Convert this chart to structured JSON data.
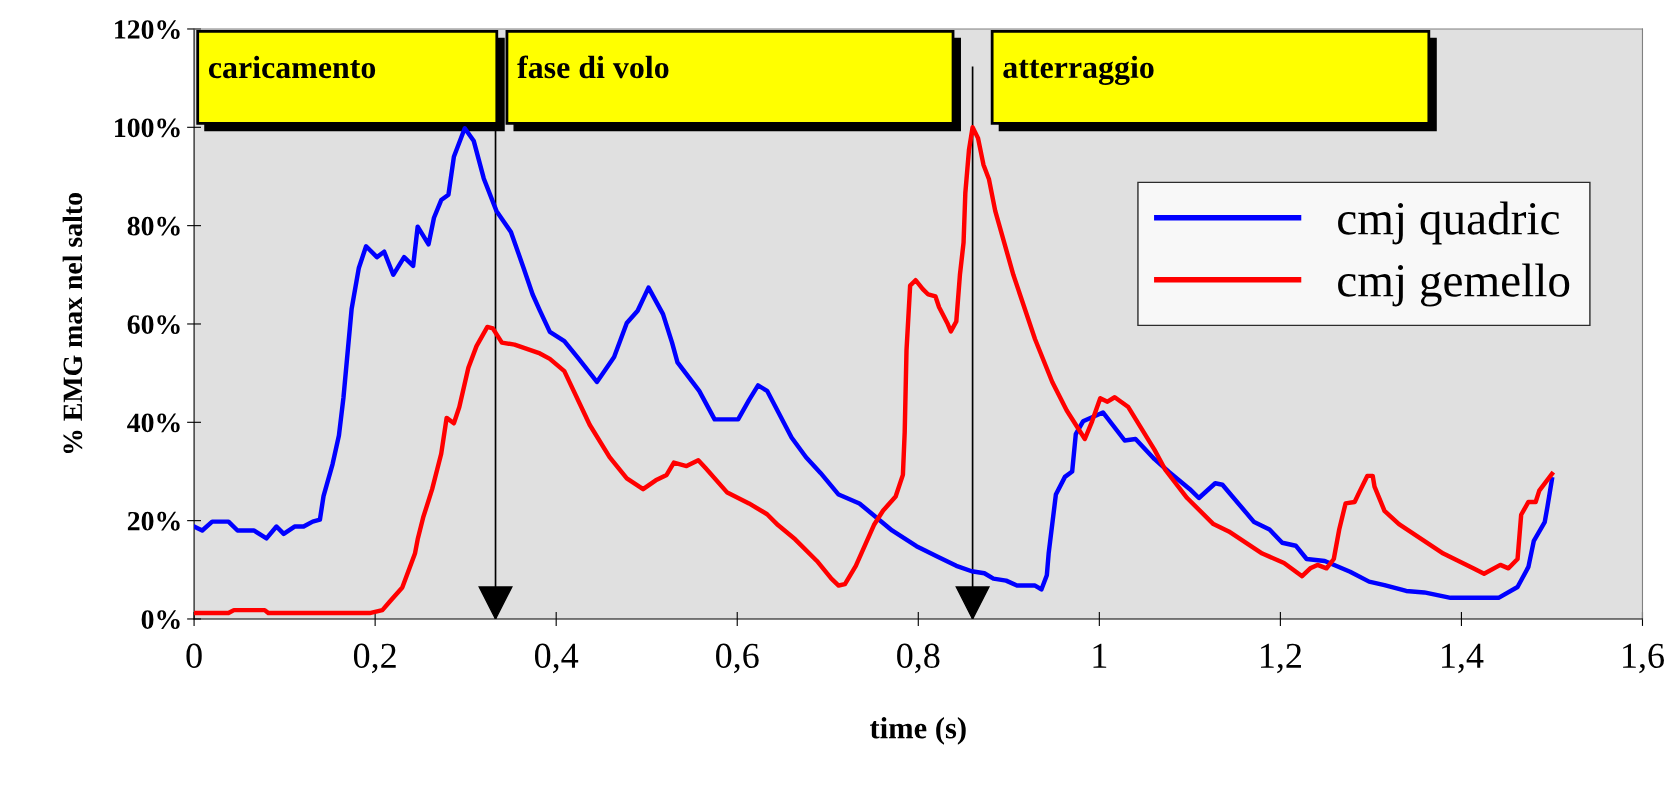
{
  "chart_data": {
    "type": "line",
    "xlabel": "time (s)",
    "ylabel": "% EMG max nel salto",
    "xlim": [
      0,
      1.6
    ],
    "ylim": [
      0,
      120
    ],
    "xticks": [
      0,
      {
        "value": 0.2,
        "label": "0,2"
      },
      {
        "value": 0.4,
        "label": "0,4"
      },
      {
        "value": 0.6,
        "label": "0,6"
      },
      {
        "value": 0.8,
        "label": "0,8"
      },
      1,
      {
        "value": 1.2,
        "label": "1,2"
      },
      {
        "value": 1.4,
        "label": "1,4"
      },
      {
        "value": 1.6,
        "label": "1,6"
      }
    ],
    "yticks": [
      {
        "value": 0,
        "label": "0%"
      },
      {
        "value": 20,
        "label": "20%"
      },
      {
        "value": 40,
        "label": "40%"
      },
      {
        "value": 60,
        "label": "60%"
      },
      {
        "value": 80,
        "label": "80%"
      },
      {
        "value": 100,
        "label": "100%"
      },
      {
        "value": 120,
        "label": "120%"
      }
    ],
    "grid": false,
    "legend": "top right",
    "line_style": "solid",
    "marker": "none",
    "series": [
      {
        "name": "cmj quadric",
        "color": "#0000ff",
        "x": [
          0,
          0.009,
          0.02,
          0.038,
          0.048,
          0.066,
          0.08,
          0.091,
          0.099,
          0.111,
          0.121,
          0.131,
          0.139,
          0.143,
          0.153,
          0.16,
          0.165,
          0.17,
          0.174,
          0.182,
          0.19,
          0.202,
          0.21,
          0.22,
          0.232,
          0.242,
          0.247,
          0.259,
          0.265,
          0.273,
          0.281,
          0.287,
          0.299,
          0.309,
          0.32,
          0.334,
          0.35,
          0.364,
          0.374,
          0.382,
          0.393,
          0.409,
          0.425,
          0.445,
          0.464,
          0.478,
          0.49,
          0.502,
          0.518,
          0.528,
          0.534,
          0.558,
          0.575,
          0.601,
          0.613,
          0.623,
          0.633,
          0.66,
          0.676,
          0.692,
          0.712,
          0.735,
          0.771,
          0.798,
          0.822,
          0.842,
          0.859,
          0.873,
          0.883,
          0.897,
          0.909,
          0.929,
          0.936,
          0.942,
          0.944,
          0.952,
          0.962,
          0.97,
          0.974,
          0.982,
          1.004,
          1.028,
          1.04,
          1.061,
          1.077,
          1.1,
          1.11,
          1.128,
          1.136,
          1.171,
          1.188,
          1.202,
          1.217,
          1.229,
          1.249,
          1.277,
          1.298,
          1.315,
          1.339,
          1.359,
          1.388,
          1.441,
          1.462,
          1.474,
          1.48,
          1.492,
          1.495,
          1.5
        ],
        "values": [
          18.8,
          18,
          19.8,
          19.8,
          18,
          18,
          16.4,
          18.8,
          17.3,
          18.8,
          18.8,
          19.8,
          20.2,
          25,
          31.5,
          37.3,
          45,
          55,
          63,
          71.4,
          75.8,
          73.6,
          74.7,
          70,
          73.6,
          71.8,
          79.8,
          76.2,
          81.6,
          85.2,
          86.3,
          94,
          99.8,
          97.2,
          89.6,
          83,
          78.7,
          71.4,
          66,
          62.7,
          58.4,
          56.5,
          52.9,
          48.2,
          53.3,
          60.2,
          62.7,
          67.4,
          62,
          56.2,
          52.2,
          46.4,
          40.6,
          40.6,
          44.5,
          47.5,
          46.4,
          36.9,
          32.9,
          29.7,
          25.3,
          23.5,
          18,
          14.8,
          12.6,
          10.8,
          9.7,
          9.3,
          8.2,
          7.8,
          6.8,
          6.8,
          6,
          8.9,
          13.3,
          25.3,
          28.9,
          30,
          37.6,
          40.2,
          42,
          36.3,
          36.6,
          32.5,
          29.9,
          26.4,
          24.6,
          27.6,
          27.3,
          19.7,
          18.2,
          15.5,
          14.9,
          12.2,
          11.8,
          9.6,
          7.6,
          6.9,
          5.7,
          5.4,
          4.3,
          4.3,
          6.5,
          10.6,
          15.9,
          19.7,
          22.8,
          28.4
        ]
      },
      {
        "name": "cmj gemello",
        "color": "#ff0000",
        "x": [
          0,
          0.038,
          0.044,
          0.078,
          0.082,
          0.194,
          0.208,
          0.216,
          0.23,
          0.244,
          0.247,
          0.253,
          0.263,
          0.273,
          0.279,
          0.287,
          0.293,
          0.303,
          0.312,
          0.324,
          0.33,
          0.34,
          0.354,
          0.382,
          0.393,
          0.409,
          0.437,
          0.459,
          0.478,
          0.496,
          0.51,
          0.522,
          0.53,
          0.544,
          0.557,
          0.565,
          0.589,
          0.613,
          0.633,
          0.645,
          0.664,
          0.688,
          0.704,
          0.712,
          0.719,
          0.731,
          0.751,
          0.761,
          0.775,
          0.783,
          0.785,
          0.787,
          0.791,
          0.797,
          0.805,
          0.811,
          0.819,
          0.823,
          0.832,
          0.836,
          0.842,
          0.846,
          0.85,
          0.852,
          0.856,
          0.86,
          0.866,
          0.872,
          0.878,
          0.885,
          0.905,
          0.929,
          0.948,
          0.964,
          0.984,
          0.992,
          1.001,
          1.009,
          1.017,
          1.032,
          1.061,
          1.073,
          1.097,
          1.126,
          1.143,
          1.18,
          1.204,
          1.224,
          1.233,
          1.241,
          1.251,
          1.259,
          1.265,
          1.272,
          1.282,
          1.288,
          1.296,
          1.302,
          1.304,
          1.315,
          1.331,
          1.38,
          1.413,
          1.425,
          1.443,
          1.452,
          1.462,
          1.466,
          1.474,
          1.482,
          1.486,
          1.5
        ],
        "values": [
          1.2,
          1.2,
          1.8,
          1.8,
          1.2,
          1.2,
          1.8,
          3.5,
          6.4,
          13.3,
          16.2,
          20.6,
          26.4,
          33.6,
          40.9,
          39.8,
          43.1,
          51.1,
          55.5,
          59.4,
          59.1,
          56.2,
          55.8,
          54,
          52.9,
          50.4,
          39.5,
          32.9,
          28.6,
          26.4,
          28.2,
          29.3,
          31.8,
          31.1,
          32.3,
          30.7,
          25.7,
          23.5,
          21.3,
          19.1,
          16.2,
          11.8,
          8.2,
          6.8,
          7.1,
          10.8,
          19.1,
          22,
          24.9,
          29.3,
          38,
          54.7,
          67.8,
          68.9,
          67.1,
          66,
          65.6,
          63.4,
          60.2,
          58.5,
          60.5,
          70,
          76.5,
          86.7,
          95.4,
          100,
          97.8,
          92.4,
          89.5,
          83,
          70,
          56.9,
          48.2,
          42.4,
          36.6,
          40.2,
          44.9,
          44.2,
          45.1,
          43.1,
          34.4,
          30.3,
          24.6,
          19.3,
          17.8,
          13.3,
          11.4,
          8.7,
          10.3,
          11,
          10.3,
          12.2,
          18.2,
          23.5,
          23.8,
          26.1,
          29.1,
          29.1,
          26.9,
          22,
          19.3,
          13.3,
          10.3,
          9.2,
          11,
          10.3,
          12.2,
          21.2,
          23.8,
          23.8,
          26.1,
          29.5
        ]
      }
    ],
    "ref_lines": [
      {
        "axis": "x",
        "value": 0.333,
        "color": "#000000"
      },
      {
        "axis": "x",
        "value": 0.86,
        "color": "#000000"
      }
    ],
    "annotations": [
      "caricamento",
      "fase di volo",
      "atterraggio"
    ]
  }
}
